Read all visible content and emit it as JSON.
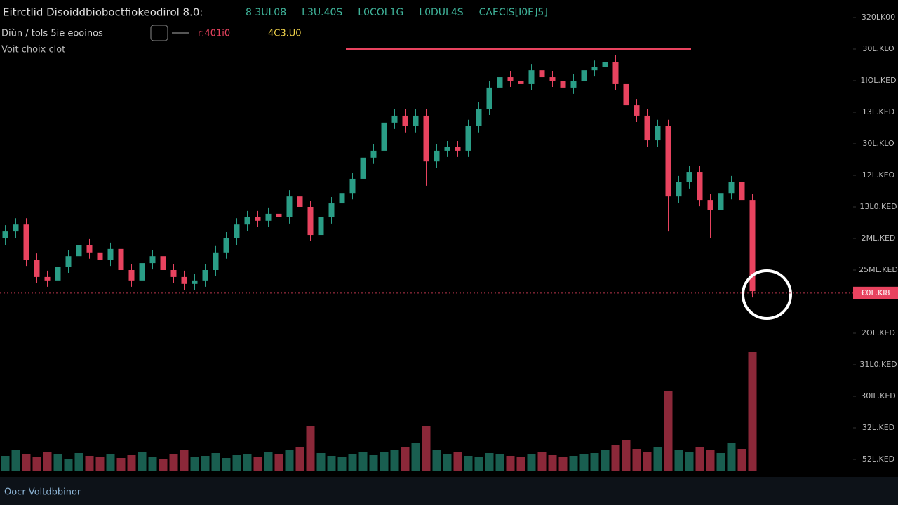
{
  "chart_data": {
    "type": "candlestick",
    "title": "Eitrctlid Disoiddbioboctfiokeodirol 8.0:",
    "subtitle": "Diùn / tols   5ie eooinos",
    "annotation": "Voit choix clot",
    "footer": "Oocr Voltdbbinor",
    "stats": [
      "8 3UL08",
      "L3U.40S",
      "L0COL1G",
      "L0DUL4S",
      "CAECIS[I0E]5]"
    ],
    "quotes": [
      "r:401i0",
      "4C3.U0"
    ],
    "up_color": "#2a9d86",
    "down_color": "#e8435f",
    "ylim": [
      0,
      140
    ],
    "yticks": [
      {
        "value": 140,
        "label": "320LK00"
      },
      {
        "value": 130,
        "label": "30L.KLO"
      },
      {
        "value": 120,
        "label": "1IOL.KED"
      },
      {
        "value": 110,
        "label": "13L.KED"
      },
      {
        "value": 100,
        "label": "30L.KLO"
      },
      {
        "value": 90,
        "label": "12L.KEO"
      },
      {
        "value": 80,
        "label": "13L0.KED"
      },
      {
        "value": 70,
        "label": "2ML.KED"
      },
      {
        "value": 60,
        "label": "25ML.KED"
      },
      {
        "value": 40,
        "label": "2OL.KED"
      },
      {
        "value": 30,
        "label": "31L0.KED"
      },
      {
        "value": 20,
        "label": "30IL.KED"
      },
      {
        "value": 10,
        "label": "32L.KED"
      },
      {
        "value": 0,
        "label": "52L.KED"
      }
    ],
    "resistance": 130,
    "current_price": {
      "value": 52.7,
      "label": "€0L.KI8"
    },
    "open": [
      70.0,
      72.2,
      74.4,
      63.3,
      57.8,
      56.7,
      61.1,
      64.4,
      67.8,
      65.6,
      63.3,
      66.7,
      60.0,
      56.7,
      62.2,
      64.4,
      60.0,
      57.8,
      55.6,
      56.7,
      60.0,
      65.6,
      70.0,
      74.4,
      76.7,
      75.6,
      77.8,
      76.7,
      83.3,
      80.0,
      71.1,
      76.7,
      81.1,
      84.4,
      88.9,
      95.6,
      97.8,
      106.7,
      108.9,
      105.6,
      108.9,
      94.4,
      97.8,
      98.9,
      97.8,
      105.6,
      111.1,
      117.8,
      121.1,
      120.0,
      118.9,
      123.3,
      121.1,
      120.0,
      117.8,
      120.0,
      123.3,
      124.4,
      126.0,
      118.9,
      112.2,
      108.9,
      101.1,
      105.6,
      83.3,
      87.8,
      91.1,
      82.2,
      78.9,
      84.4,
      87.8,
      82.2
    ],
    "close": [
      72.2,
      74.4,
      63.3,
      57.8,
      56.7,
      61.1,
      64.4,
      67.8,
      65.6,
      63.3,
      66.7,
      60.0,
      56.7,
      62.2,
      64.4,
      60.0,
      57.8,
      55.6,
      56.7,
      60.0,
      65.6,
      70.0,
      74.4,
      76.7,
      75.6,
      77.8,
      76.7,
      83.3,
      80.0,
      71.1,
      76.7,
      81.1,
      84.4,
      88.9,
      95.6,
      97.8,
      106.7,
      108.9,
      105.6,
      108.9,
      94.4,
      97.8,
      98.9,
      97.8,
      105.6,
      111.1,
      117.8,
      121.1,
      120.0,
      118.9,
      123.3,
      121.1,
      120.0,
      117.8,
      120.0,
      123.3,
      124.4,
      126.0,
      118.9,
      112.2,
      108.9,
      101.1,
      105.6,
      83.3,
      87.8,
      91.1,
      82.2,
      78.9,
      84.4,
      87.8,
      82.2,
      53.3
    ],
    "high": [
      74.2,
      76.4,
      76.4,
      65.3,
      59.8,
      63.1,
      66.4,
      69.8,
      69.8,
      67.6,
      68.7,
      68.7,
      62.0,
      64.2,
      66.4,
      66.4,
      62.0,
      59.8,
      58.7,
      62.0,
      67.6,
      72.0,
      76.4,
      78.7,
      78.7,
      79.8,
      79.8,
      85.3,
      85.3,
      82.0,
      78.7,
      83.1,
      86.4,
      90.9,
      97.6,
      99.8,
      108.7,
      110.9,
      110.9,
      110.9,
      110.9,
      99.8,
      100.9,
      100.9,
      107.6,
      113.1,
      119.8,
      123.1,
      123.1,
      122.0,
      125.3,
      125.3,
      123.1,
      122.0,
      122.0,
      125.3,
      126.4,
      128.0,
      128.0,
      120.9,
      114.2,
      110.9,
      107.6,
      107.6,
      89.8,
      93.1,
      93.1,
      84.2,
      86.4,
      89.8,
      89.8,
      84.2
    ],
    "low": [
      68.0,
      70.2,
      61.3,
      55.8,
      54.7,
      54.7,
      59.1,
      62.4,
      63.6,
      61.3,
      61.3,
      58.0,
      54.7,
      54.7,
      60.2,
      58.0,
      55.8,
      53.6,
      53.6,
      54.7,
      58.0,
      63.6,
      68.0,
      72.4,
      73.6,
      73.6,
      74.7,
      74.7,
      78.0,
      69.1,
      69.1,
      74.7,
      79.1,
      82.4,
      86.9,
      93.6,
      95.8,
      104.7,
      103.6,
      103.6,
      86.7,
      92.4,
      95.8,
      95.8,
      95.8,
      103.6,
      109.1,
      115.8,
      118.0,
      116.9,
      116.9,
      119.1,
      118.0,
      115.8,
      115.8,
      118.0,
      121.3,
      122.4,
      116.9,
      110.2,
      106.9,
      99.1,
      99.1,
      72.2,
      81.3,
      85.8,
      80.2,
      70.0,
      76.9,
      82.4,
      80.2,
      51.3
    ],
    "volume": [
      22,
      30,
      25,
      20,
      28,
      24,
      18,
      26,
      22,
      20,
      25,
      19,
      23,
      27,
      21,
      18,
      24,
      30,
      20,
      22,
      26,
      19,
      23,
      25,
      21,
      28,
      24,
      30,
      35,
      65,
      26,
      22,
      20,
      24,
      28,
      23,
      27,
      30,
      35,
      40,
      65,
      30,
      25,
      28,
      22,
      20,
      26,
      24,
      22,
      21,
      25,
      28,
      23,
      20,
      22,
      24,
      26,
      30,
      38,
      45,
      32,
      28,
      34,
      115,
      30,
      28,
      35,
      30,
      26,
      40,
      32,
      170
    ]
  }
}
